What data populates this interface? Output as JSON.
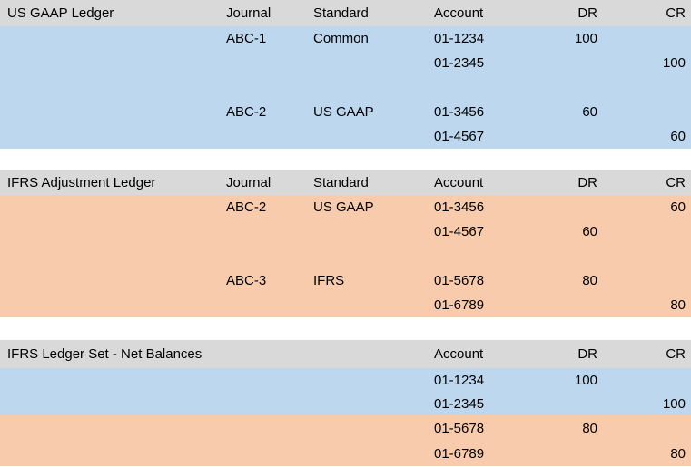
{
  "colors": {
    "page_bg": "#ffffff",
    "header_bg": "#d9d9d9",
    "blue_bg": "#bdd7ee",
    "orange_bg": "#f8cbad",
    "text": "#000000"
  },
  "sections": [
    {
      "title": "US GAAP Ledger",
      "band": "blue",
      "headers": {
        "journal": "Journal",
        "standard": "Standard",
        "account": "Account",
        "dr": "DR",
        "cr": "CR"
      },
      "rows": [
        {
          "journal": "ABC-1",
          "standard": "Common",
          "account": "01-1234",
          "dr": "100",
          "cr": ""
        },
        {
          "journal": "",
          "standard": "",
          "account": "01-2345",
          "dr": "",
          "cr": "100"
        },
        {
          "journal": "",
          "standard": "",
          "account": "",
          "dr": "",
          "cr": ""
        },
        {
          "journal": "ABC-2",
          "standard": "US GAAP",
          "account": "01-3456",
          "dr": "60",
          "cr": ""
        },
        {
          "journal": "",
          "standard": "",
          "account": "01-4567",
          "dr": "",
          "cr": "60"
        }
      ]
    },
    {
      "title": "IFRS Adjustment Ledger",
      "band": "orange",
      "headers": {
        "journal": "Journal",
        "standard": "Standard",
        "account": "Account",
        "dr": "DR",
        "cr": "CR"
      },
      "rows": [
        {
          "journal": "ABC-2",
          "standard": "US GAAP",
          "account": "01-3456",
          "dr": "",
          "cr": "60"
        },
        {
          "journal": "",
          "standard": "",
          "account": "01-4567",
          "dr": "60",
          "cr": ""
        },
        {
          "journal": "",
          "standard": "",
          "account": "",
          "dr": "",
          "cr": ""
        },
        {
          "journal": "ABC-3",
          "standard": "IFRS",
          "account": "01-5678",
          "dr": "80",
          "cr": ""
        },
        {
          "journal": "",
          "standard": "",
          "account": "01-6789",
          "dr": "",
          "cr": "80"
        }
      ]
    },
    {
      "title": "IFRS Ledger Set - Net Balances",
      "headers": {
        "account": "Account",
        "dr": "DR",
        "cr": "CR"
      },
      "rows": [
        {
          "band": "blue",
          "account": "01-1234",
          "dr": "100",
          "cr": ""
        },
        {
          "band": "blue",
          "account": "01-2345",
          "dr": "",
          "cr": "100"
        },
        {
          "band": "orange",
          "account": "01-5678",
          "dr": "80",
          "cr": ""
        },
        {
          "band": "orange",
          "account": "01-6789",
          "dr": "",
          "cr": "80"
        }
      ]
    }
  ]
}
